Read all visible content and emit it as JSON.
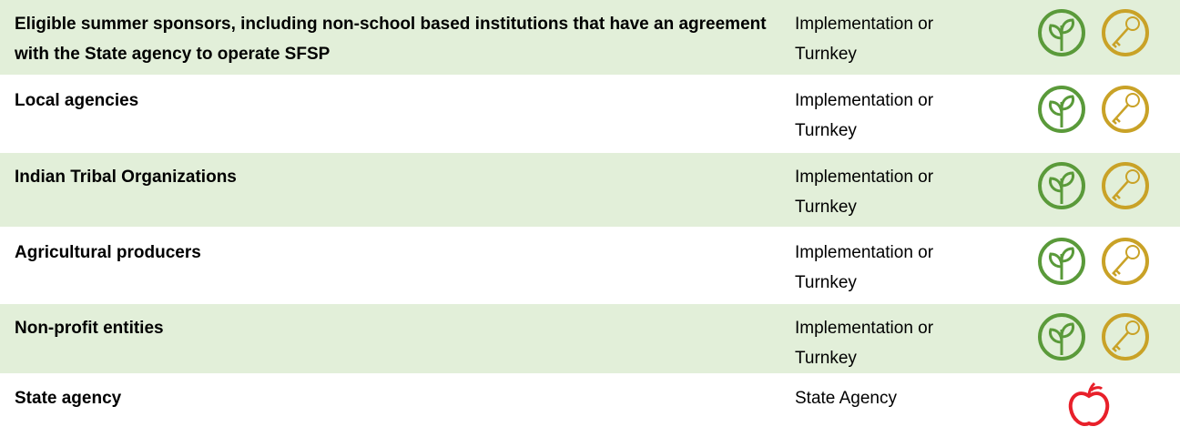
{
  "table": {
    "rows": [
      [
        "Eligible summer sponsors, including non-school based institutions that have an agreement with the State agency to operate SFSP",
        "Implementation or Turnkey"
      ],
      [
        "Local agencies",
        "Implementation or Turnkey"
      ],
      [
        "Indian Tribal Organizations",
        "Implementation or Turnkey"
      ],
      [
        "Agricultural producers",
        "Implementation or Turnkey"
      ],
      [
        "Non-profit entities",
        "Implementation or Turnkey"
      ],
      [
        "State agency",
        "State Agency"
      ]
    ]
  }
}
